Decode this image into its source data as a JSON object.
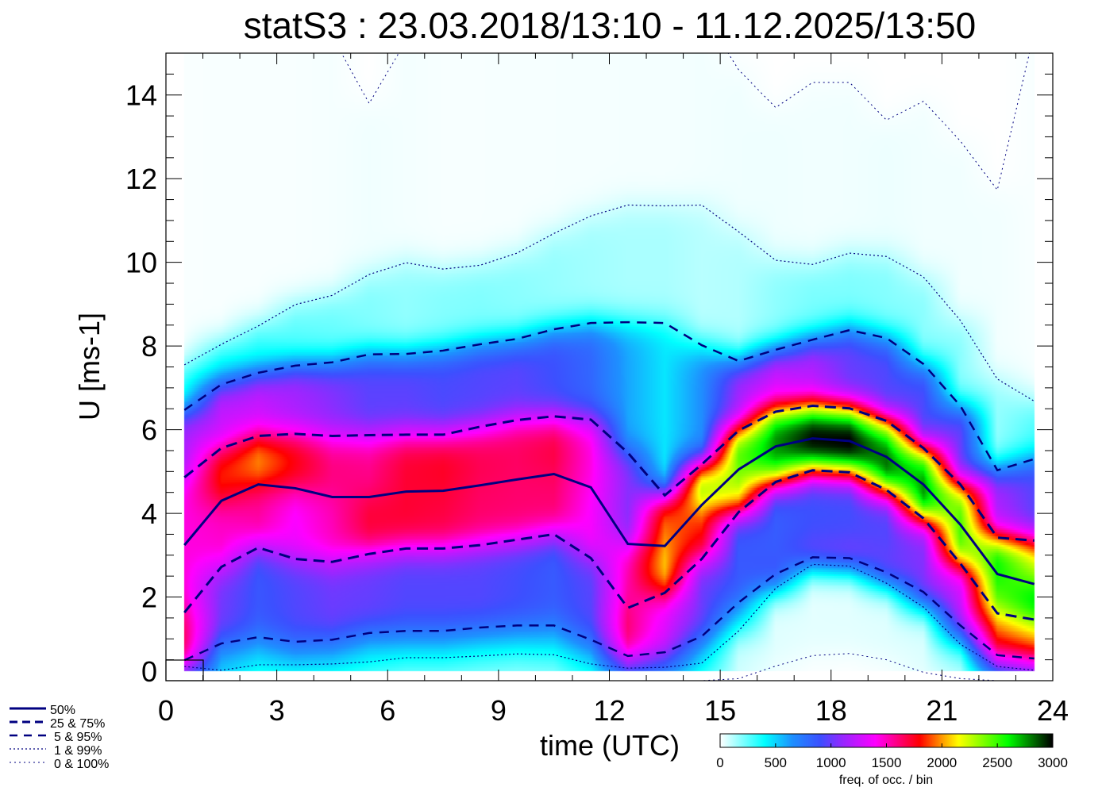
{
  "chart_data": {
    "type": "heatmap",
    "title": "statS3 : 23.03.2018/13:10 - 11.12.2025/13:50",
    "xlabel": "time (UTC)",
    "ylabel": "U [ms-1]",
    "xlim": [
      0,
      24
    ],
    "ylim": [
      0,
      15
    ],
    "xticks": [
      "0",
      "3",
      "6",
      "9",
      "12",
      "15",
      "18",
      "21",
      "24"
    ],
    "yticks": [
      "0",
      "2",
      "4",
      "6",
      "8",
      "10",
      "12",
      "14"
    ],
    "hours": [
      0.5,
      1.5,
      2.5,
      3.5,
      4.5,
      5.5,
      6.5,
      7.5,
      8.5,
      9.5,
      10.5,
      11.5,
      12.5,
      13.5,
      14.5,
      15.5,
      16.5,
      17.5,
      18.5,
      19.5,
      20.5,
      21.5,
      22.5,
      23.5
    ],
    "series": [
      {
        "name": "0 & 100%",
        "style": "dotted-thin",
        "lower": [
          0,
          0,
          0,
          0,
          0,
          0,
          0,
          0,
          0,
          0,
          0,
          0,
          0,
          0,
          0,
          0.05,
          0.35,
          0.6,
          0.65,
          0.5,
          0.2,
          0.05,
          0,
          0
        ],
        "upper": [
          17,
          17,
          17,
          17,
          15.4,
          13.8,
          15.3,
          17,
          17,
          17,
          17,
          17,
          17,
          17,
          16,
          14.6,
          13.7,
          14.3,
          14.3,
          13.4,
          13.85,
          12.9,
          11.73,
          15.5
        ]
      },
      {
        "name": "1 & 99%",
        "style": "dotted",
        "lower": [
          0.34,
          0.25,
          0.38,
          0.38,
          0.4,
          0.45,
          0.55,
          0.55,
          0.59,
          0.64,
          0.62,
          0.4,
          0.3,
          0.32,
          0.42,
          1.19,
          2.21,
          2.78,
          2.74,
          2.33,
          1.76,
          0.87,
          0.34,
          0.25
        ],
        "upper": [
          7.55,
          8.04,
          8.48,
          8.99,
          9.21,
          9.71,
          9.99,
          9.84,
          9.93,
          10.22,
          10.69,
          11.11,
          11.37,
          11.35,
          11.37,
          10.73,
          10.05,
          9.95,
          10.22,
          10.14,
          9.65,
          8.61,
          7.21,
          6.68
        ]
      },
      {
        "name": "5 & 95%",
        "style": "dashed",
        "lower": [
          0.49,
          0.89,
          1.04,
          0.93,
          0.98,
          1.14,
          1.19,
          1.19,
          1.27,
          1.32,
          1.32,
          0.98,
          0.59,
          0.68,
          1.06,
          1.87,
          2.55,
          2.95,
          2.93,
          2.59,
          2.12,
          1.32,
          0.61,
          0.53
        ],
        "upper": [
          6.47,
          7.08,
          7.36,
          7.53,
          7.61,
          7.8,
          7.81,
          7.89,
          8.04,
          8.17,
          8.4,
          8.55,
          8.57,
          8.55,
          8.02,
          7.64,
          7.91,
          8.15,
          8.38,
          8.19,
          7.57,
          6.57,
          5.03,
          5.3
        ]
      },
      {
        "name": "25 & 75%",
        "style": "dashed-thick",
        "lower": [
          1.63,
          2.72,
          3.18,
          2.91,
          2.84,
          3.03,
          3.16,
          3.16,
          3.24,
          3.37,
          3.5,
          2.93,
          1.74,
          2.1,
          2.91,
          4.03,
          4.75,
          5.03,
          4.98,
          4.56,
          3.88,
          2.8,
          1.61,
          1.46
        ],
        "upper": [
          4.86,
          5.56,
          5.85,
          5.9,
          5.85,
          5.87,
          5.88,
          5.88,
          6.07,
          6.23,
          6.32,
          6.24,
          5.45,
          4.43,
          5.17,
          5.98,
          6.43,
          6.57,
          6.51,
          6.21,
          5.56,
          4.69,
          3.42,
          3.35
        ]
      },
      {
        "name": "50%",
        "style": "solid",
        "values": [
          3.24,
          4.3,
          4.69,
          4.6,
          4.39,
          4.39,
          4.52,
          4.54,
          4.67,
          4.81,
          4.94,
          4.62,
          3.27,
          3.22,
          4.2,
          5.05,
          5.6,
          5.79,
          5.73,
          5.35,
          4.69,
          3.73,
          2.55,
          2.31
        ]
      }
    ],
    "legend": [
      "50%",
      "25 &  75%",
      "5 &  95%",
      "1 &  99%",
      "0 & 100%"
    ],
    "legend_placement": "bottom-left",
    "colorbar": {
      "label": "freq. of occ. / bin",
      "range": [
        0,
        3000
      ],
      "ticks": [
        "0",
        "500",
        "1000",
        "1500",
        "2000",
        "2500",
        "3000"
      ],
      "colors": [
        [
          0,
          "#ffffff"
        ],
        [
          400,
          "#00ffff"
        ],
        [
          650,
          "#1e90ff"
        ],
        [
          900,
          "#3c50ff"
        ],
        [
          1100,
          "#9628ff"
        ],
        [
          1400,
          "#ff00ff"
        ],
        [
          1800,
          "#ff0000"
        ],
        [
          2000,
          "#ff9900"
        ],
        [
          2150,
          "#ffff00"
        ],
        [
          2600,
          "#00ff00"
        ],
        [
          3000,
          "#000000"
        ]
      ]
    },
    "line_color": "#000080"
  }
}
